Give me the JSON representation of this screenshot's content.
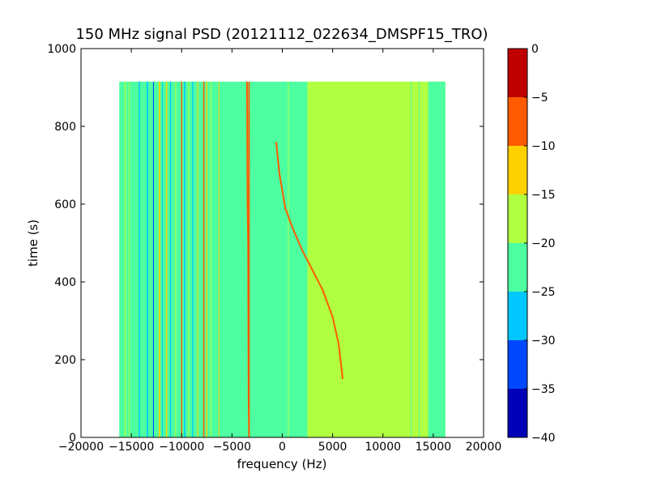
{
  "chart_data": {
    "type": "heatmap",
    "title": "150 MHz signal PSD (20121112_022634_DMSPF15_TRO)",
    "xlabel": "frequency (Hz)",
    "ylabel": "time (s)",
    "xlim": [
      -20000,
      20000
    ],
    "ylim": [
      0,
      1000
    ],
    "x_ticks": [
      -20000,
      -15000,
      -10000,
      -5000,
      0,
      5000,
      10000,
      15000,
      20000
    ],
    "y_ticks": [
      0,
      200,
      400,
      600,
      800,
      1000
    ],
    "data_extent": {
      "x": [
        -16200,
        16200
      ],
      "y": [
        0,
        915
      ]
    },
    "colorbar": {
      "levels": [
        -40,
        -35,
        -30,
        -25,
        -20,
        -15,
        -10,
        -5,
        0
      ],
      "tick_labels": [
        "−40",
        "−35",
        "−30",
        "−25",
        "−20",
        "−15",
        "−10",
        "−5",
        "0"
      ],
      "colors": [
        "#0000b8",
        "#0048ff",
        "#00c8ff",
        "#4dffa0",
        "#b0ff40",
        "#ffd000",
        "#ff5a00",
        "#c00000"
      ]
    },
    "regions": [
      {
        "x": [
          -16200,
          2500
        ],
        "y": [
          0,
          915
        ],
        "level": -22.5
      },
      {
        "x": [
          2500,
          16200
        ],
        "y": [
          0,
          915
        ],
        "level": -17.5
      },
      {
        "x": [
          14500,
          16200
        ],
        "y": [
          0,
          915
        ],
        "level": -22.5
      }
    ],
    "bands": [
      {
        "x": -15600,
        "width": 120,
        "level": -17.5
      },
      {
        "x": -15200,
        "width": 80,
        "level": -17.5
      },
      {
        "x": -14200,
        "width": 120,
        "level": -27.5
      },
      {
        "x": -13400,
        "width": 140,
        "level": -27.5
      },
      {
        "x": -12800,
        "width": 90,
        "level": -32.5
      },
      {
        "x": -12200,
        "width": 150,
        "level": -12.5
      },
      {
        "x": -11900,
        "width": 80,
        "level": -27.5
      },
      {
        "x": -11500,
        "width": 120,
        "level": -12.5
      },
      {
        "x": -11100,
        "width": 100,
        "level": -27.5
      },
      {
        "x": -10600,
        "width": 90,
        "level": -17.5
      },
      {
        "x": -10000,
        "width": 110,
        "level": -7.5
      },
      {
        "x": -9700,
        "width": 140,
        "level": -27.5
      },
      {
        "x": -9300,
        "width": 90,
        "level": -17.5
      },
      {
        "x": -8900,
        "width": 110,
        "level": -27.5
      },
      {
        "x": -8400,
        "width": 90,
        "level": -12.5
      },
      {
        "x": -7800,
        "width": 130,
        "level": -7.5
      },
      {
        "x": -7500,
        "width": 110,
        "level": -12.5
      },
      {
        "x": -7100,
        "width": 90,
        "level": -17.5
      },
      {
        "x": -6300,
        "width": 80,
        "level": -12.5
      },
      {
        "x": -3300,
        "width": 140,
        "level": -7.5
      },
      {
        "x": 600,
        "width": 80,
        "level": -17.5
      },
      {
        "x": 12800,
        "width": 60,
        "level": -22.5
      },
      {
        "x": 13600,
        "width": 60,
        "level": -22.5
      }
    ],
    "traces": [
      {
        "level": -7.5,
        "points": [
          [
            -600,
            760
          ],
          [
            -300,
            680
          ],
          [
            300,
            590
          ],
          [
            1000,
            540
          ],
          [
            2000,
            480
          ],
          [
            3000,
            430
          ],
          [
            4000,
            380
          ],
          [
            5000,
            310
          ],
          [
            5600,
            240
          ],
          [
            6000,
            150
          ]
        ]
      },
      {
        "level": -7.5,
        "points": [
          [
            -3500,
            915
          ],
          [
            -3450,
            600
          ],
          [
            -3400,
            500
          ],
          [
            -3350,
            100
          ],
          [
            -3300,
            0
          ]
        ]
      }
    ]
  }
}
